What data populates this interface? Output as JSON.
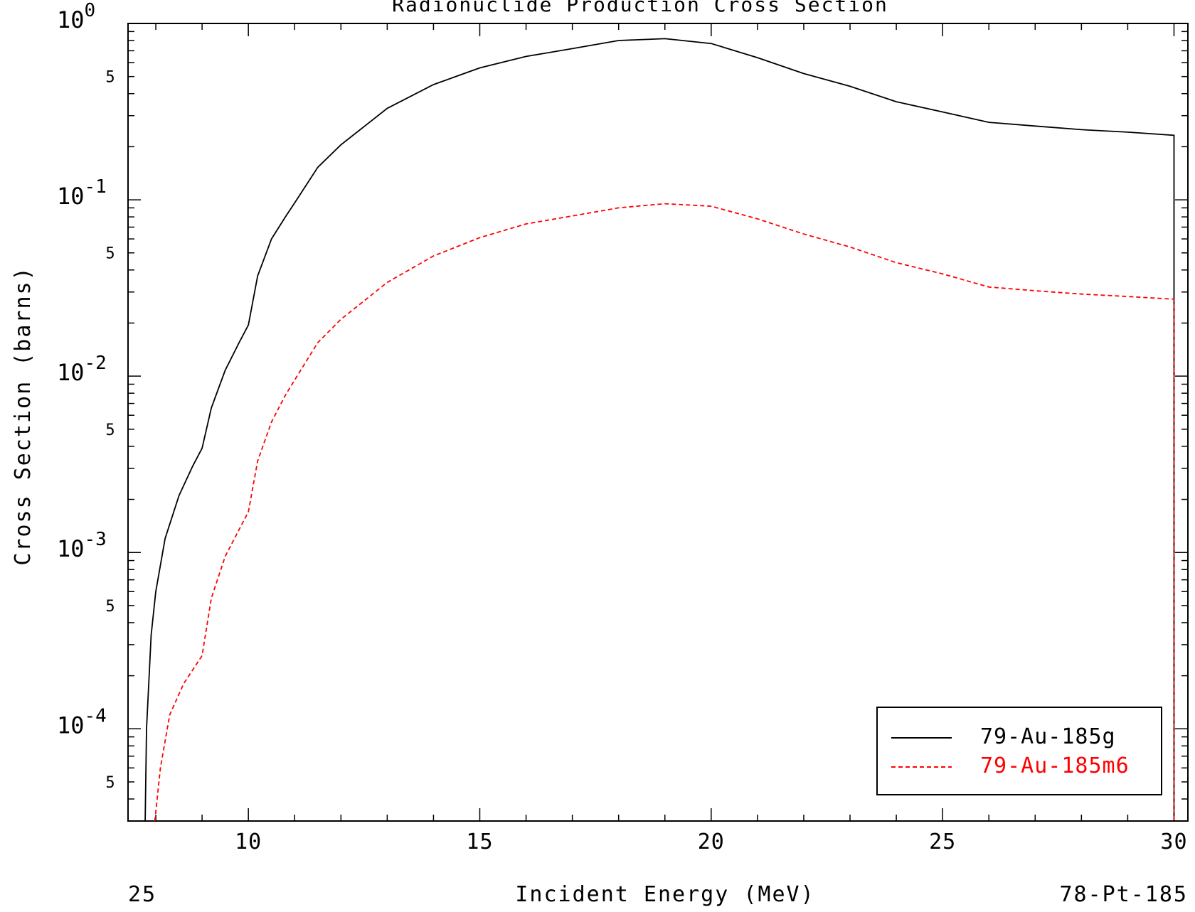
{
  "chart_data": {
    "type": "line",
    "title": "Radionuclide Production Cross Section",
    "xlabel": "Incident Energy (MeV)",
    "ylabel": "Cross Section (barns)",
    "xlim": [
      7.4,
      30.3
    ],
    "ylim": [
      3e-05,
      1.0
    ],
    "yscale": "log",
    "grid": false,
    "legend_position": "bottom-right",
    "x_ticks": [
      "10",
      "15",
      "20",
      "25",
      "30"
    ],
    "y_ticks_major": [
      {
        "base": "10",
        "exp": "0"
      },
      {
        "base": "10",
        "exp": "-1"
      },
      {
        "base": "10",
        "exp": "-2"
      },
      {
        "base": "10",
        "exp": "-3"
      },
      {
        "base": "10",
        "exp": "-4"
      }
    ],
    "y_ticks_minor": [
      "5",
      "5",
      "5",
      "5",
      "5"
    ],
    "footer_left": "25",
    "footer_right": "78-Pt-185",
    "series": [
      {
        "name": "79-Au-185g",
        "color": "#000000",
        "dash": "solid",
        "points": [
          [
            7.77,
            3e-05
          ],
          [
            7.8,
            0.0001
          ],
          [
            7.9,
            0.00034
          ],
          [
            8.0,
            0.0006
          ],
          [
            8.2,
            0.0012
          ],
          [
            8.5,
            0.0021
          ],
          [
            8.8,
            0.0031
          ],
          [
            9.0,
            0.0039
          ],
          [
            9.2,
            0.0066
          ],
          [
            9.5,
            0.0108
          ],
          [
            9.8,
            0.0155
          ],
          [
            10.0,
            0.0195
          ],
          [
            10.2,
            0.037
          ],
          [
            10.5,
            0.06
          ],
          [
            10.8,
            0.08
          ],
          [
            11.0,
            0.096
          ],
          [
            11.5,
            0.153
          ],
          [
            12.0,
            0.205
          ],
          [
            13.0,
            0.33
          ],
          [
            14.0,
            0.45
          ],
          [
            15.0,
            0.56
          ],
          [
            16.0,
            0.65
          ],
          [
            17.0,
            0.72
          ],
          [
            18.0,
            0.8
          ],
          [
            19.0,
            0.82
          ],
          [
            20.0,
            0.77
          ],
          [
            21.0,
            0.64
          ],
          [
            22.0,
            0.52
          ],
          [
            23.0,
            0.44
          ],
          [
            24.0,
            0.36
          ],
          [
            25.0,
            0.315
          ],
          [
            26.0,
            0.275
          ],
          [
            27.0,
            0.262
          ],
          [
            28.0,
            0.25
          ],
          [
            29.0,
            0.242
          ],
          [
            30.0,
            0.232
          ],
          [
            30.0,
            3e-05
          ]
        ]
      },
      {
        "name": "79-Au-185m6",
        "color": "#ff0000",
        "dash": "dashed",
        "points": [
          [
            7.98,
            3e-05
          ],
          [
            8.1,
            6e-05
          ],
          [
            8.3,
            0.00012
          ],
          [
            8.6,
            0.00018
          ],
          [
            9.0,
            0.00026
          ],
          [
            9.2,
            0.00055
          ],
          [
            9.5,
            0.00095
          ],
          [
            9.8,
            0.00135
          ],
          [
            10.0,
            0.0017
          ],
          [
            10.2,
            0.0033
          ],
          [
            10.5,
            0.0055
          ],
          [
            10.8,
            0.0078
          ],
          [
            11.0,
            0.0095
          ],
          [
            11.5,
            0.0155
          ],
          [
            12.0,
            0.021
          ],
          [
            13.0,
            0.034
          ],
          [
            14.0,
            0.048
          ],
          [
            15.0,
            0.061
          ],
          [
            16.0,
            0.073
          ],
          [
            17.0,
            0.081
          ],
          [
            18.0,
            0.09
          ],
          [
            19.0,
            0.095
          ],
          [
            20.0,
            0.092
          ],
          [
            21.0,
            0.078
          ],
          [
            22.0,
            0.064
          ],
          [
            23.0,
            0.054
          ],
          [
            24.0,
            0.044
          ],
          [
            25.0,
            0.038
          ],
          [
            26.0,
            0.032
          ],
          [
            27.0,
            0.0305
          ],
          [
            28.0,
            0.0292
          ],
          [
            29.0,
            0.0283
          ],
          [
            30.0,
            0.0273
          ],
          [
            30.0,
            3e-05
          ]
        ]
      }
    ]
  }
}
